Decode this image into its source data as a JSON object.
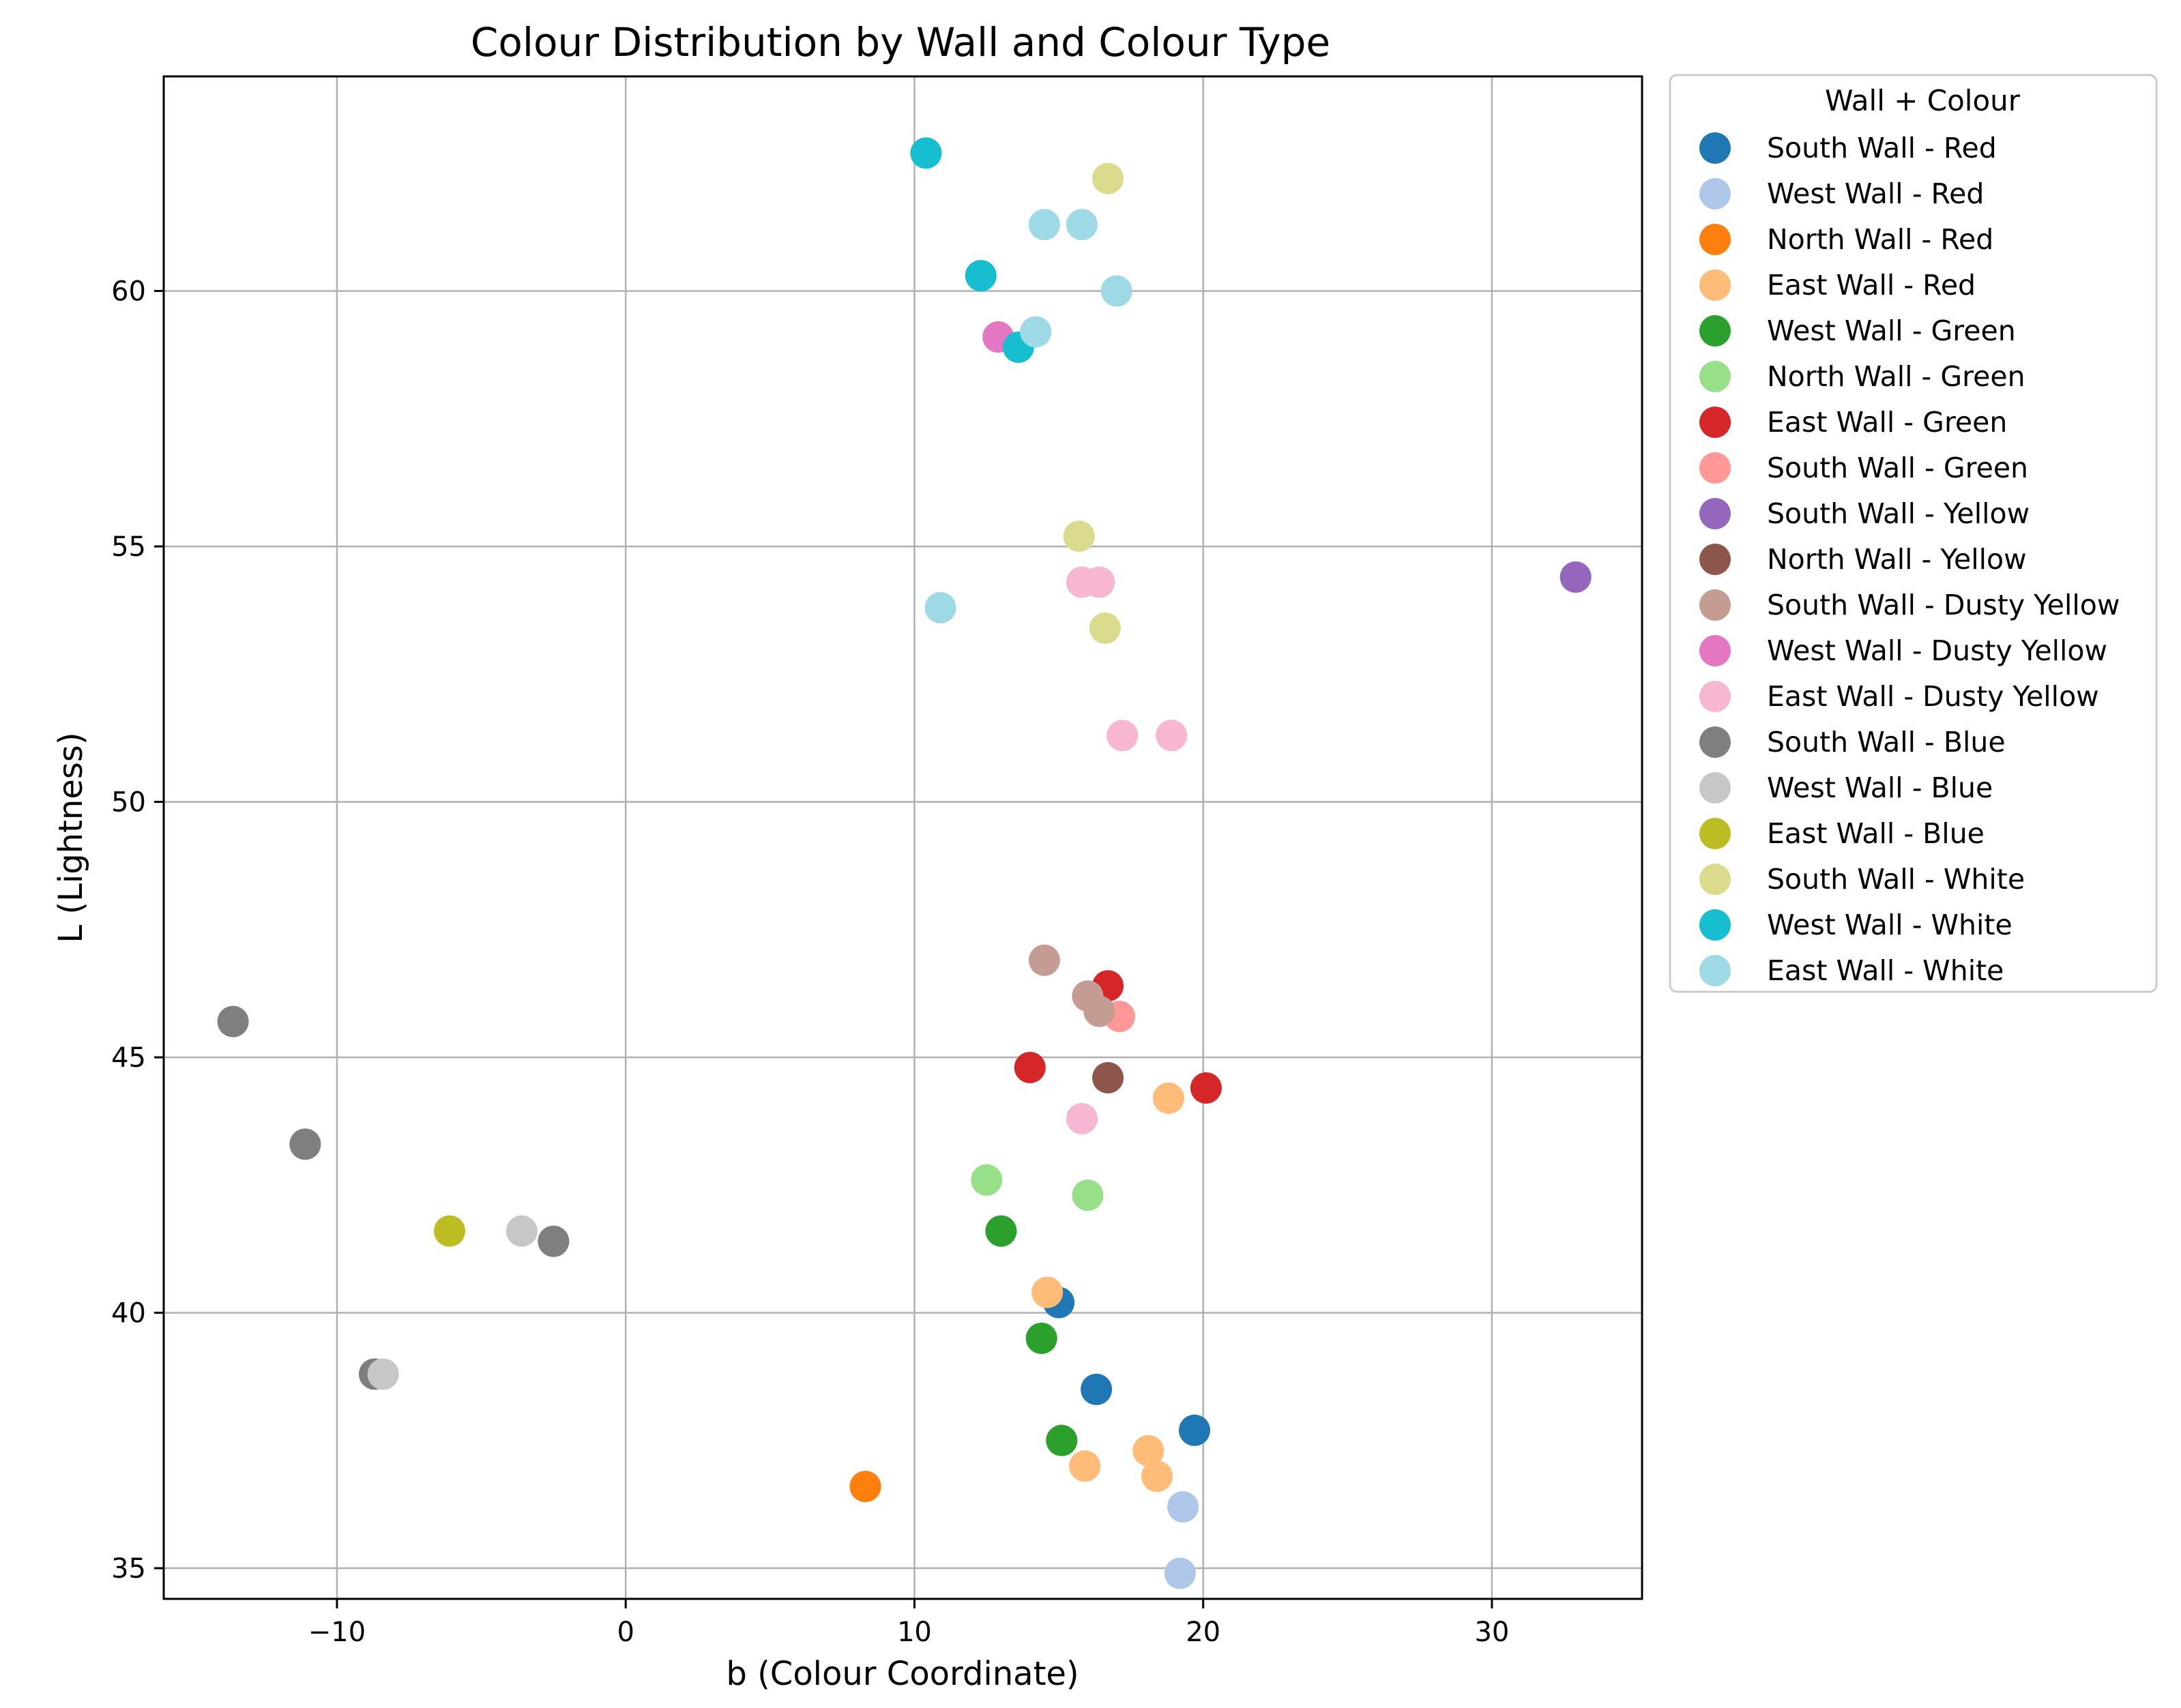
{
  "chart_data": {
    "type": "scatter",
    "title": "Colour Distribution by Wall and Colour Type",
    "xlabel": "b (Colour Coordinate)",
    "ylabel": "L (Lightness)",
    "xlim": [
      -16,
      35.2
    ],
    "ylim": [
      34.4,
      64.2
    ],
    "xticks": [
      -10,
      0,
      10,
      20,
      30
    ],
    "yticks": [
      35,
      40,
      45,
      50,
      55,
      60
    ],
    "xtick_labels": [
      "−10",
      "0",
      "10",
      "20",
      "30"
    ],
    "ytick_labels": [
      "35",
      "40",
      "45",
      "50",
      "55",
      "60"
    ],
    "grid": true,
    "legend_title": "Wall + Colour",
    "legend_position": "outside-top-right",
    "series": [
      {
        "name": "South Wall - Red",
        "color": "#1f77b4",
        "points": [
          [
            15,
            40.2
          ],
          [
            16.3,
            38.5
          ],
          [
            19.7,
            37.7
          ]
        ]
      },
      {
        "name": "West Wall - Red",
        "color": "#aec7e8",
        "points": [
          [
            19.3,
            36.2
          ],
          [
            19.2,
            34.9
          ]
        ]
      },
      {
        "name": "North Wall - Red",
        "color": "#ff7f0e",
        "points": [
          [
            8.3,
            36.6
          ]
        ]
      },
      {
        "name": "East Wall - Red",
        "color": "#ffbb78",
        "points": [
          [
            14.6,
            40.4
          ],
          [
            18.8,
            44.2
          ],
          [
            18.1,
            37.3
          ],
          [
            18.4,
            36.8
          ],
          [
            15.9,
            37.0
          ]
        ]
      },
      {
        "name": "West Wall - Green",
        "color": "#2ca02c",
        "points": [
          [
            13.0,
            41.6
          ],
          [
            14.4,
            39.5
          ],
          [
            15.1,
            37.5
          ]
        ]
      },
      {
        "name": "North Wall - Green",
        "color": "#98df8a",
        "points": [
          [
            12.5,
            42.6
          ],
          [
            16.0,
            42.3
          ]
        ]
      },
      {
        "name": "East Wall - Green",
        "color": "#d62728",
        "points": [
          [
            16.7,
            46.4
          ],
          [
            14.0,
            44.8
          ],
          [
            20.1,
            44.4
          ]
        ]
      },
      {
        "name": "South Wall - Green",
        "color": "#ff9896",
        "points": [
          [
            17.1,
            45.8
          ]
        ]
      },
      {
        "name": "South Wall - Yellow",
        "color": "#9467bd",
        "points": [
          [
            32.9,
            54.4
          ]
        ]
      },
      {
        "name": "North Wall - Yellow",
        "color": "#8c564b",
        "points": [
          [
            16.7,
            44.6
          ]
        ]
      },
      {
        "name": "South Wall - Dusty Yellow",
        "color": "#c49c94",
        "points": [
          [
            14.5,
            46.9
          ],
          [
            16.0,
            46.2
          ],
          [
            16.4,
            45.9
          ]
        ]
      },
      {
        "name": "West Wall - Dusty Yellow",
        "color": "#e377c2",
        "points": [
          [
            12.9,
            59.1
          ]
        ]
      },
      {
        "name": "East Wall - Dusty Yellow",
        "color": "#f7b6d2",
        "points": [
          [
            15.8,
            54.3
          ],
          [
            16.4,
            54.3
          ],
          [
            17.2,
            51.3
          ],
          [
            18.9,
            51.3
          ],
          [
            15.8,
            43.8
          ]
        ]
      },
      {
        "name": "South Wall - Blue",
        "color": "#7f7f7f",
        "points": [
          [
            -13.6,
            45.7
          ],
          [
            -11.1,
            43.3
          ],
          [
            -2.5,
            41.4
          ],
          [
            -8.7,
            38.8
          ]
        ]
      },
      {
        "name": "West Wall - Blue",
        "color": "#c7c7c7",
        "points": [
          [
            -3.6,
            41.6
          ],
          [
            -8.4,
            38.8
          ]
        ]
      },
      {
        "name": "East Wall - Blue",
        "color": "#bcbd22",
        "points": [
          [
            -6.1,
            41.6
          ]
        ]
      },
      {
        "name": "South Wall - White",
        "color": "#dbdb8d",
        "points": [
          [
            16.7,
            62.2
          ],
          [
            15.7,
            55.2
          ],
          [
            16.6,
            53.4
          ]
        ]
      },
      {
        "name": "West Wall - White",
        "color": "#17becf",
        "points": [
          [
            10.4,
            62.7
          ],
          [
            12.3,
            60.3
          ],
          [
            13.6,
            58.9
          ]
        ]
      },
      {
        "name": "East Wall - White",
        "color": "#9edae5",
        "points": [
          [
            14.5,
            61.3
          ],
          [
            15.8,
            61.3
          ],
          [
            17.0,
            60.0
          ],
          [
            14.2,
            59.2
          ],
          [
            10.9,
            53.8
          ]
        ]
      }
    ]
  }
}
